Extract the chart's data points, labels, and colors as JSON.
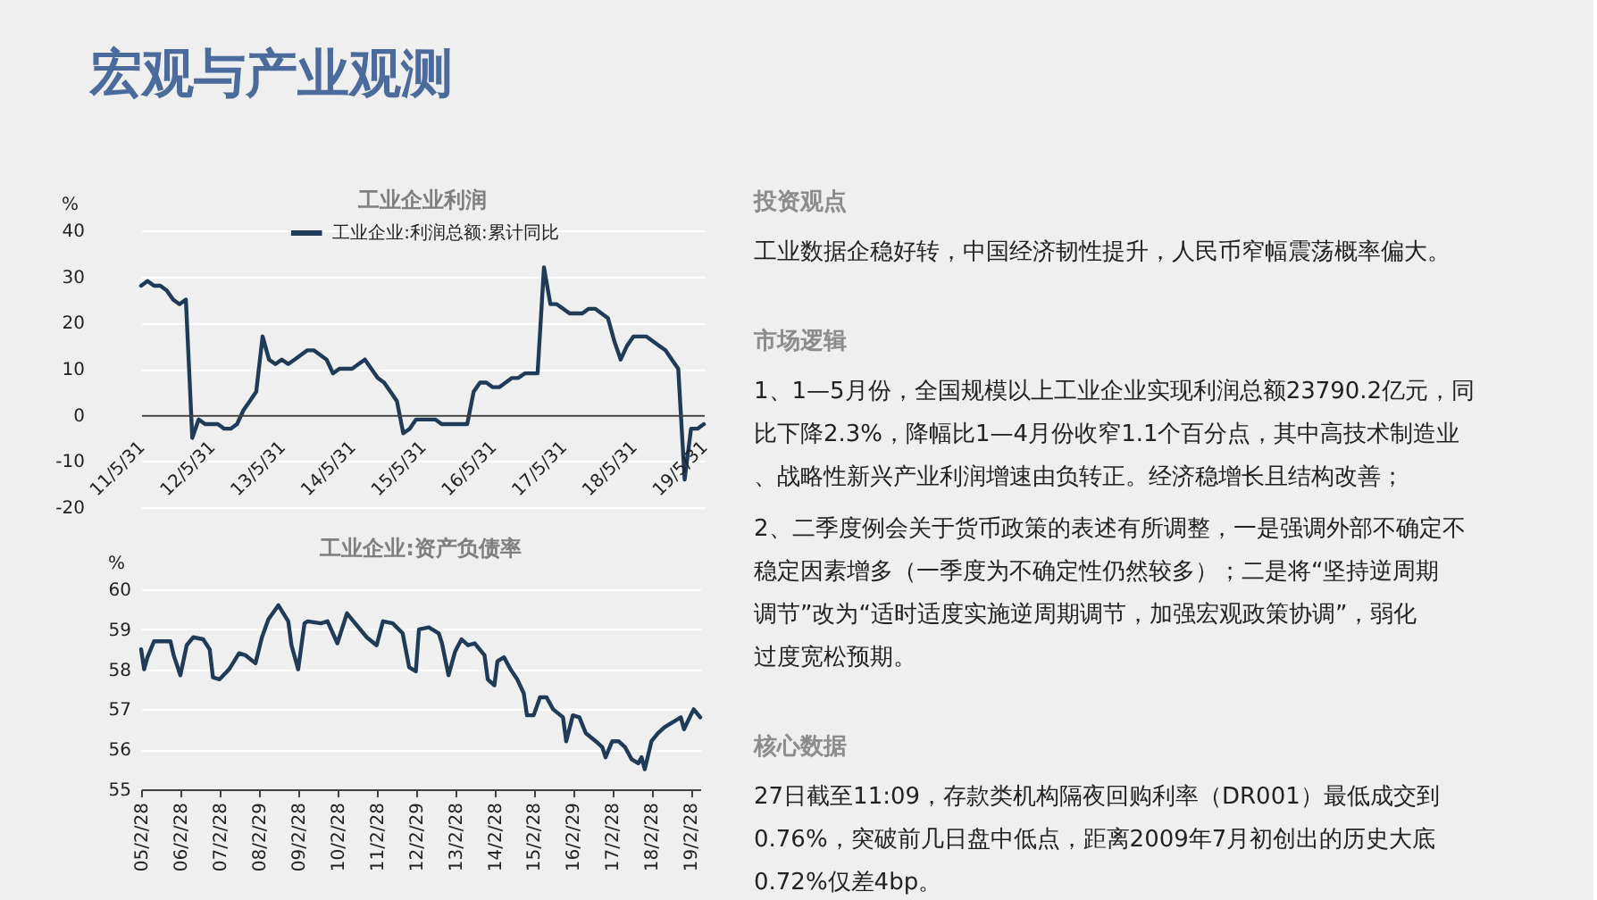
{
  "chart_data": [
    {
      "type": "other",
      "title": "宏观与产业观测"
    },
    {
      "type": "line",
      "title": "工业企业利润",
      "ylabel": "%",
      "categories": [
        "11/5/31",
        null,
        null,
        null,
        null,
        null,
        null,
        null,
        null,
        null,
        null,
        "12/5/31",
        null,
        null,
        null,
        null,
        null,
        null,
        null,
        null,
        null,
        null,
        "13/5/31",
        null,
        null,
        null,
        null,
        null,
        null,
        null,
        null,
        null,
        null,
        "14/5/31",
        null,
        null,
        null,
        null,
        null,
        null,
        null,
        null,
        null,
        null,
        "15/5/31",
        null,
        null,
        null,
        null,
        null,
        null,
        null,
        null,
        null,
        null,
        "16/5/31",
        null,
        null,
        null,
        null,
        null,
        null,
        null,
        null,
        null,
        null,
        "17/5/31",
        null,
        null,
        null,
        null,
        null,
        null,
        null,
        null,
        null,
        null,
        "18/5/31",
        null,
        null,
        null,
        null,
        null,
        null,
        null,
        null,
        null,
        null,
        "19/5/31"
      ],
      "series": [
        {
          "name": "工业企业:利润总额:累计同比",
          "color": "#1f3b57",
          "values": [
            28,
            29,
            28,
            28,
            27,
            25,
            24,
            25,
            -5,
            -1,
            -2,
            -2,
            -2,
            -3,
            -3,
            -2,
            1,
            3,
            5,
            17,
            12,
            11,
            12,
            11,
            12,
            13,
            14,
            14,
            13,
            12,
            9,
            10,
            10,
            10,
            11,
            12,
            10,
            8,
            7,
            5,
            3,
            -4,
            -3,
            -1,
            -1,
            -1,
            -1,
            -2,
            -2,
            -2,
            -2,
            -2,
            5,
            7,
            7,
            6,
            6,
            7,
            8,
            8,
            9,
            9,
            9,
            32,
            24,
            24,
            23,
            22,
            22,
            22,
            23,
            23,
            22,
            21,
            16,
            12,
            15,
            17,
            17,
            17,
            16,
            15,
            14,
            12,
            10,
            -14,
            -3,
            -3,
            -2
          ]
        }
      ],
      "ylim": [
        -20,
        40
      ],
      "yticks": [
        -20,
        -10,
        0,
        10,
        20,
        30,
        40
      ],
      "grid": "y",
      "legend": "top"
    },
    {
      "type": "line",
      "title": "工业企业:资产负债率",
      "ylabel": "%",
      "x": [
        "2005-02",
        "2005-03",
        "2005-04",
        "2005-06",
        "2005-08",
        "2005-11",
        "2005-12",
        "2006-02",
        "2006-04",
        "2006-06",
        "2006-09",
        "2006-11",
        "2006-12",
        "2007-02",
        "2007-05",
        "2007-08",
        "2007-10",
        "2008-01",
        "2008-03",
        "2008-05",
        "2008-08",
        "2008-11",
        "2008-12",
        "2009-02",
        "2009-04",
        "2009-05",
        "2009-09",
        "2009-11",
        "2010-02",
        "2010-05",
        "2010-07",
        "2010-11",
        "2011-02",
        "2011-04",
        "2011-07",
        "2011-10",
        "2011-12",
        "2012-02",
        "2012-03",
        "2012-06",
        "2012-09",
        "2012-10",
        "2012-12",
        "2013-02",
        "2013-04",
        "2013-06",
        "2013-08",
        "2013-11",
        "2013-12",
        "2014-02",
        "2014-03",
        "2014-05",
        "2014-07",
        "2014-09",
        "2014-11",
        "2014-12",
        "2015-02",
        "2015-04",
        "2015-06",
        "2015-08",
        "2015-11",
        "2015-12",
        "2016-02",
        "2016-04",
        "2016-06",
        "2016-09",
        "2016-11",
        "2016-12",
        "2017-02",
        "2017-04",
        "2017-06",
        "2017-08",
        "2017-10",
        "2017-11",
        "2017-12",
        "2018-02",
        "2018-04",
        "2018-06",
        "2018-07",
        "2018-09",
        "2018-11",
        "2018-12",
        "2019-02",
        "2019-03",
        "2019-05"
      ],
      "series": [
        {
          "color": "#1f3b57",
          "values": [
            58.5,
            58.0,
            58.3,
            58.7,
            58.7,
            58.7,
            58.35,
            57.85,
            58.6,
            58.8,
            58.75,
            58.5,
            57.8,
            57.75,
            58.0,
            58.4,
            58.35,
            58.15,
            58.8,
            59.25,
            59.6,
            59.2,
            58.6,
            58.0,
            59.15,
            59.2,
            59.15,
            59.2,
            58.65,
            59.4,
            59.2,
            58.8,
            58.6,
            59.2,
            59.15,
            58.9,
            58.05,
            57.95,
            59.0,
            59.05,
            58.9,
            58.65,
            57.85,
            58.45,
            58.75,
            58.6,
            58.65,
            58.35,
            57.75,
            57.6,
            58.2,
            58.3,
            58.0,
            57.75,
            57.4,
            56.85,
            56.85,
            57.3,
            57.3,
            57.0,
            56.8,
            56.2,
            56.85,
            56.8,
            56.4,
            56.2,
            56.05,
            55.8,
            56.2,
            56.2,
            56.05,
            55.75,
            55.65,
            55.8,
            55.5,
            56.2,
            56.4,
            56.55,
            56.6,
            56.7,
            56.8,
            56.5,
            56.85,
            57.0,
            56.8
          ]
        }
      ],
      "xlim": [
        "2005-02",
        "2019-05"
      ],
      "xticks": [
        {
          "value": "2005-02",
          "label": "05/2/28"
        },
        {
          "value": "2006-02",
          "label": "06/2/28"
        },
        {
          "value": "2007-02",
          "label": "07/2/28"
        },
        {
          "value": "2008-02",
          "label": "08/2/29"
        },
        {
          "value": "2009-02",
          "label": "09/2/28"
        },
        {
          "value": "2010-02",
          "label": "10/2/28"
        },
        {
          "value": "2011-02",
          "label": "11/2/28"
        },
        {
          "value": "2012-02",
          "label": "12/2/29"
        },
        {
          "value": "2013-02",
          "label": "13/2/28"
        },
        {
          "value": "2014-02",
          "label": "14/2/28"
        },
        {
          "value": "2015-02",
          "label": "15/2/28"
        },
        {
          "value": "2016-02",
          "label": "16/2/29"
        },
        {
          "value": "2017-02",
          "label": "17/2/28"
        },
        {
          "value": "2018-02",
          "label": "18/2/28"
        },
        {
          "value": "2019-02",
          "label": "19/2/28"
        }
      ],
      "ylim": [
        55,
        60
      ],
      "yticks": [
        55,
        56,
        57,
        58,
        59,
        60
      ],
      "grid": "y"
    },
    {
      "type": "other",
      "title": "投资观点",
      "annotations": [
        "工业数据企稳好转，中国经济韧性提升，人民币窄幅震荡概率偏大。"
      ]
    },
    {
      "type": "other",
      "title": "市场逻辑",
      "annotations": [
        "1、1—5月份，全国规模以上工业企业实现利润总额23790.2亿元，同比下降2.3%，降幅比1—4月份收窄1.1个百分点，其中高技术制造业、战略性新兴产业利润增速由负转正。经济稳增长且结构改善；",
        "2、二季度例会关于货币政策的表述有所调整，一是强调外部不确定不稳定因素增多（一季度为不确定性仍然较多）；二是将“坚持逆周期调节”改为“适时适度实施逆周期调节，加强宏观政策协调”，弱化过度宽松预期。"
      ]
    },
    {
      "type": "other",
      "title": "核心数据",
      "annotations": [
        "27日截至11:09，存款类机构隔夜回购利率（DR001）最低成交到0.76%，突破前几日盘中低点，距离2009年7月初创出的历史大底0.72%仅差4bp。"
      ]
    }
  ]
}
